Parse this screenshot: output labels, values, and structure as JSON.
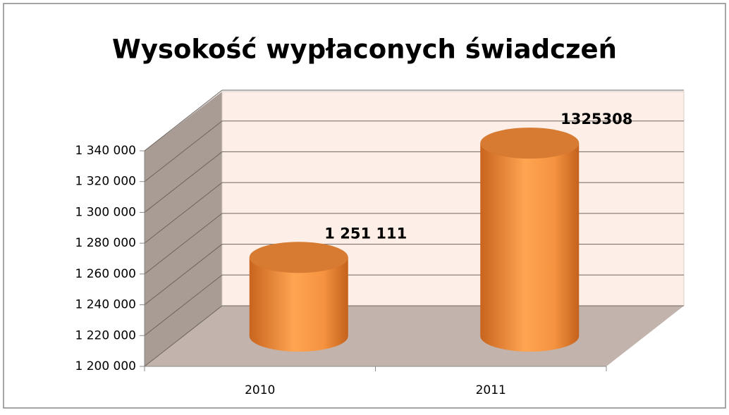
{
  "chart_data": {
    "type": "bar",
    "title": "Wysokość wypłaconych świadczeń",
    "categories": [
      "2010",
      "2011"
    ],
    "values": [
      1251111,
      1325308
    ],
    "value_labels": [
      "1 251 111",
      "1325308"
    ],
    "color": "#f08a3a",
    "ylim": [
      1200000,
      1340000
    ],
    "yticks": [
      {
        "value": 1200000,
        "label": "1 200 000"
      },
      {
        "value": 1220000,
        "label": "1 220 000"
      },
      {
        "value": 1240000,
        "label": "1 240 000"
      },
      {
        "value": 1260000,
        "label": "1 260 000"
      },
      {
        "value": 1280000,
        "label": "1 280 000"
      },
      {
        "value": 1300000,
        "label": "1 300 000"
      },
      {
        "value": 1320000,
        "label": "1 320 000"
      },
      {
        "value": 1340000,
        "label": "1 340 000"
      }
    ],
    "grid": true
  }
}
